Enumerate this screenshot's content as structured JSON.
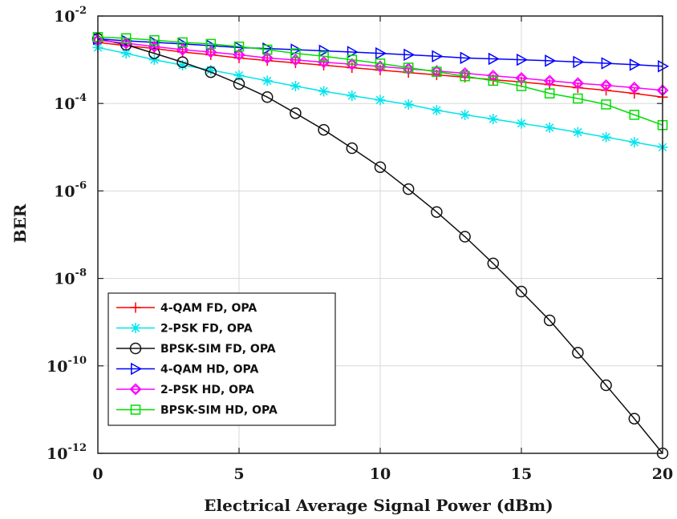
{
  "chart_data": {
    "type": "line",
    "xlabel": "Electrical Average Signal Power (dBm)",
    "ylabel": "BER",
    "xlim": [
      0,
      20
    ],
    "ylim": [
      1e-12,
      0.01
    ],
    "y_scale": "log",
    "grid": true,
    "legend_position": "bottom-left",
    "x_ticks": [
      "0",
      "5",
      "10",
      "15",
      "20"
    ],
    "y_ticks": [
      {
        "base": "10",
        "exp": "-2"
      },
      {
        "base": "10",
        "exp": "-4"
      },
      {
        "base": "10",
        "exp": "-6"
      },
      {
        "base": "10",
        "exp": "-8"
      },
      {
        "base": "10",
        "exp": "-10"
      },
      {
        "base": "10",
        "exp": "-12"
      }
    ],
    "x": [
      0,
      1,
      2,
      3,
      4,
      5,
      6,
      7,
      8,
      9,
      10,
      11,
      12,
      13,
      14,
      15,
      16,
      17,
      18,
      19,
      20
    ],
    "series": [
      {
        "name": "4-QAM FD, OPA",
        "color": "#ff0000",
        "marker": "plus",
        "values": [
          0.0025,
          0.0021,
          0.0018,
          0.0015,
          0.0013,
          0.0011,
          0.00096,
          0.00085,
          0.00075,
          0.00066,
          0.00058,
          0.00051,
          0.00045,
          0.0004,
          0.00035,
          0.00031,
          0.00027,
          0.00023,
          0.0002,
          0.00017,
          0.00014
        ]
      },
      {
        "name": "2-PSK FD, OPA",
        "color": "#00e5ee",
        "marker": "asterisk",
        "values": [
          0.0019,
          0.0014,
          0.001,
          0.00075,
          0.00058,
          0.00044,
          0.00033,
          0.00025,
          0.00019,
          0.00015,
          0.00012,
          9.5e-05,
          7e-05,
          5.5e-05,
          4.4e-05,
          3.5e-05,
          2.8e-05,
          2.2e-05,
          1.7e-05,
          1.3e-05,
          1e-05
        ]
      },
      {
        "name": "BPSK-SIM FD, OPA",
        "color": "#111111",
        "marker": "circle",
        "values": [
          0.003,
          0.0022,
          0.0014,
          0.00088,
          0.00052,
          0.00028,
          0.00014,
          6e-05,
          2.5e-05,
          9.5e-06,
          3.5e-06,
          1.1e-06,
          3.3e-07,
          9e-08,
          2.2e-08,
          5e-09,
          1.1e-09,
          2e-10,
          3.6e-11,
          6.2e-12,
          1e-12
        ]
      },
      {
        "name": "4-QAM HD, OPA",
        "color": "#0000ff",
        "marker": "triangle-right",
        "values": [
          0.003,
          0.0027,
          0.0025,
          0.0023,
          0.0021,
          0.0019,
          0.0018,
          0.0017,
          0.0016,
          0.0015,
          0.0014,
          0.0013,
          0.0012,
          0.0011,
          0.00105,
          0.001,
          0.00095,
          0.00089,
          0.00083,
          0.00077,
          0.00071
        ]
      },
      {
        "name": "2-PSK HD, OPA",
        "color": "#ff00ff",
        "marker": "diamond",
        "values": [
          0.0028,
          0.0024,
          0.002,
          0.0017,
          0.0015,
          0.0013,
          0.0011,
          0.00099,
          0.00088,
          0.00079,
          0.0007,
          0.00062,
          0.00055,
          0.00049,
          0.00043,
          0.00038,
          0.00033,
          0.00029,
          0.00026,
          0.00023,
          0.0002
        ]
      },
      {
        "name": "BPSK-SIM HD, OPA",
        "color": "#00dd00",
        "marker": "square",
        "values": [
          0.0033,
          0.0031,
          0.0028,
          0.0025,
          0.0023,
          0.002,
          0.0017,
          0.0014,
          0.0012,
          0.001,
          0.00082,
          0.00066,
          0.00053,
          0.00042,
          0.00033,
          0.00025,
          0.00017,
          0.00013,
          9.5e-05,
          5.5e-05,
          3.2e-05
        ]
      }
    ]
  }
}
